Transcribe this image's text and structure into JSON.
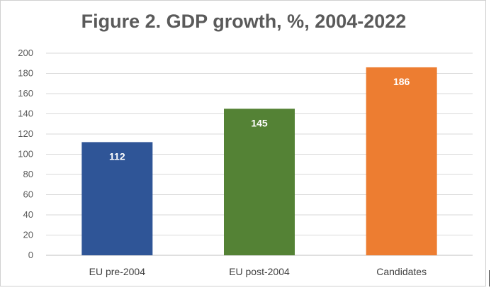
{
  "chart_data": {
    "type": "bar",
    "title": "Figure 2. GDP growth, %, 2004-2022",
    "categories": [
      "EU pre-2004",
      "EU post-2004",
      "Candidates"
    ],
    "values": [
      112,
      145,
      186
    ],
    "data_labels": [
      "112",
      "145",
      "186"
    ],
    "bar_colors": [
      "#2f5597",
      "#548235",
      "#ed7d31"
    ],
    "xlabel": "",
    "ylabel": "",
    "ylim": [
      0,
      200
    ],
    "yticks": [
      0,
      20,
      40,
      60,
      80,
      100,
      120,
      140,
      160,
      180,
      200
    ],
    "grid": true,
    "legend": "none"
  }
}
